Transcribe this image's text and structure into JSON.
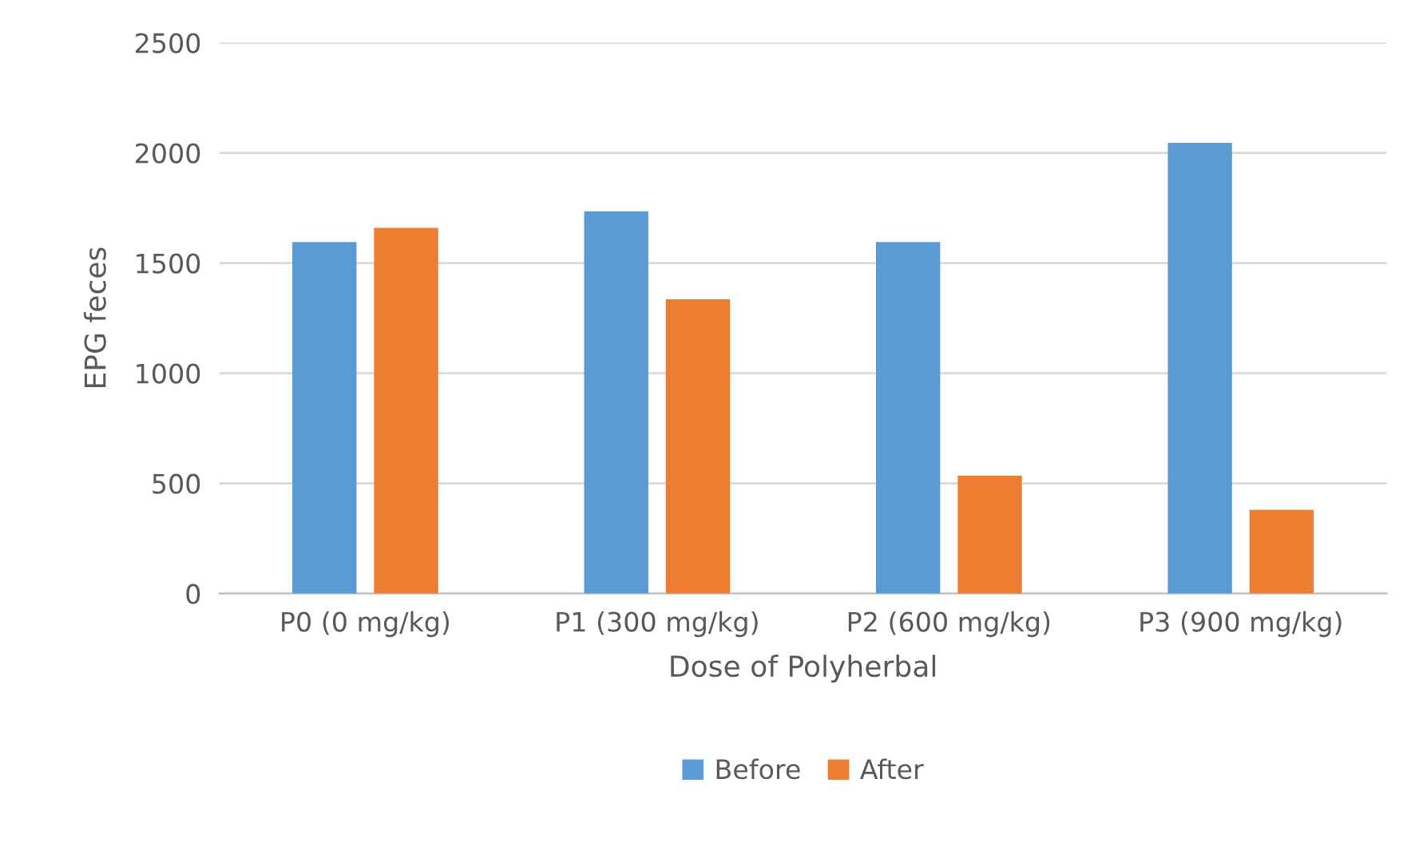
{
  "chart_data": {
    "type": "bar",
    "xlabel": "Dose of Polyherbal",
    "ylabel": "EPG feces",
    "categories": [
      "P0 (0 mg/kg)",
      "P1 (300 mg/kg)",
      "P2 (600 mg/kg)",
      "P3 (900 mg/kg)"
    ],
    "series": [
      {
        "name": "Before",
        "color": "#5b9bd5",
        "values": [
          1595,
          1735,
          1595,
          2045
        ]
      },
      {
        "name": "After",
        "color": "#ed7d31",
        "values": [
          1660,
          1335,
          535,
          380
        ]
      }
    ],
    "ylim": [
      0,
      2500
    ],
    "yticks": [
      0,
      500,
      1000,
      1500,
      2000,
      2500
    ],
    "grid": "y",
    "legend": "bottom"
  }
}
